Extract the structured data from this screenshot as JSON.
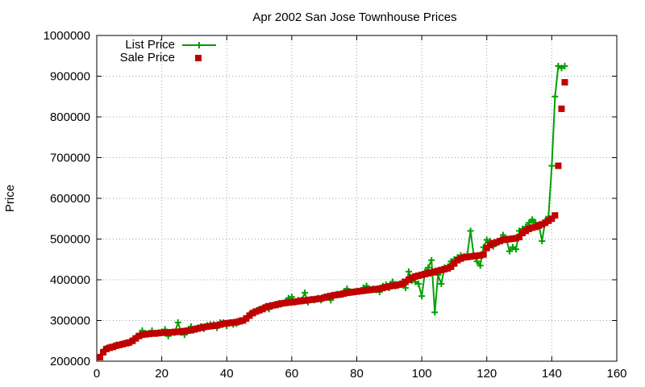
{
  "chart_data": {
    "type": "line",
    "title": "Apr 2002 San Jose Townhouse Prices",
    "xlabel": "",
    "ylabel": "Price",
    "xlim": [
      0,
      160
    ],
    "ylim": [
      200000,
      1000000
    ],
    "x_ticks": [
      0,
      20,
      40,
      60,
      80,
      100,
      120,
      140,
      160
    ],
    "y_ticks": [
      200000,
      300000,
      400000,
      500000,
      600000,
      700000,
      800000,
      900000,
      1000000
    ],
    "x_tick_labels": [
      "0",
      "20",
      "40",
      "60",
      "80",
      "100",
      "120",
      "140",
      "160"
    ],
    "y_tick_labels": [
      "200000",
      "300000",
      "400000",
      "500000",
      "600000",
      "700000",
      "800000",
      "900000",
      "1000000"
    ],
    "grid": true,
    "legend_position": "top-left",
    "series": [
      {
        "name": "List Price",
        "style": "line+cross",
        "color": "#00a000",
        "x": [
          1,
          2,
          3,
          4,
          5,
          6,
          7,
          8,
          9,
          10,
          11,
          12,
          13,
          14,
          15,
          16,
          17,
          18,
          19,
          20,
          21,
          22,
          23,
          24,
          25,
          26,
          27,
          28,
          29,
          30,
          31,
          32,
          33,
          34,
          35,
          36,
          37,
          38,
          39,
          40,
          41,
          42,
          43,
          44,
          45,
          46,
          47,
          48,
          49,
          50,
          51,
          52,
          53,
          54,
          55,
          56,
          57,
          58,
          59,
          60,
          61,
          62,
          63,
          64,
          65,
          66,
          67,
          68,
          69,
          70,
          71,
          72,
          73,
          74,
          75,
          76,
          77,
          78,
          79,
          80,
          81,
          82,
          83,
          84,
          85,
          86,
          87,
          88,
          89,
          90,
          91,
          92,
          93,
          94,
          95,
          96,
          97,
          98,
          99,
          100,
          101,
          102,
          103,
          104,
          105,
          106,
          107,
          108,
          109,
          110,
          111,
          112,
          113,
          114,
          115,
          116,
          117,
          118,
          119,
          120,
          121,
          122,
          123,
          124,
          125,
          126,
          127,
          128,
          129,
          130,
          131,
          132,
          133,
          134,
          135,
          136,
          137,
          138,
          139,
          140,
          141,
          142,
          143,
          144
        ],
        "values": [
          210000,
          225000,
          232000,
          235000,
          236000,
          240000,
          240000,
          242000,
          245000,
          245000,
          252000,
          258000,
          262000,
          275000,
          268000,
          268000,
          275000,
          268000,
          270000,
          272000,
          278000,
          262000,
          270000,
          270000,
          295000,
          270000,
          265000,
          275000,
          285000,
          278000,
          282000,
          285000,
          280000,
          288000,
          290000,
          290000,
          282000,
          295000,
          295000,
          287000,
          295000,
          290000,
          292000,
          300000,
          300000,
          305000,
          315000,
          320000,
          322000,
          328000,
          330000,
          335000,
          328000,
          335000,
          340000,
          342000,
          342000,
          345000,
          355000,
          358000,
          345000,
          350000,
          350000,
          368000,
          345000,
          352000,
          350000,
          355000,
          350000,
          358000,
          360000,
          350000,
          362000,
          365000,
          365000,
          370000,
          378000,
          368000,
          370000,
          372000,
          372000,
          380000,
          385000,
          375000,
          378000,
          375000,
          370000,
          385000,
          388000,
          380000,
          395000,
          385000,
          388000,
          395000,
          380000,
          420000,
          398000,
          395000,
          390000,
          360000,
          420000,
          430000,
          448000,
          320000,
          412000,
          390000,
          430000,
          432000,
          445000,
          450000,
          455000,
          460000,
          458000,
          462000,
          520000,
          460000,
          445000,
          435000,
          480000,
          498000,
          495000,
          482000,
          490000,
          495000,
          510000,
          500000,
          470000,
          480000,
          475000,
          520000,
          525000,
          530000,
          540000,
          548000,
          540000,
          535000,
          495000,
          545000,
          555000,
          680000,
          850000,
          925000,
          920000,
          925000
        ]
      },
      {
        "name": "Sale Price",
        "style": "squares",
        "color": "#c00000",
        "x": [
          1,
          2,
          3,
          4,
          5,
          6,
          7,
          8,
          9,
          10,
          11,
          12,
          13,
          14,
          15,
          16,
          17,
          18,
          19,
          20,
          21,
          22,
          23,
          24,
          25,
          26,
          27,
          28,
          29,
          30,
          31,
          32,
          33,
          34,
          35,
          36,
          37,
          38,
          39,
          40,
          41,
          42,
          43,
          44,
          45,
          46,
          47,
          48,
          49,
          50,
          51,
          52,
          53,
          54,
          55,
          56,
          57,
          58,
          59,
          60,
          61,
          62,
          63,
          64,
          65,
          66,
          67,
          68,
          69,
          70,
          71,
          72,
          73,
          74,
          75,
          76,
          77,
          78,
          79,
          80,
          81,
          82,
          83,
          84,
          85,
          86,
          87,
          88,
          89,
          90,
          91,
          92,
          93,
          94,
          95,
          96,
          97,
          98,
          99,
          100,
          101,
          102,
          103,
          104,
          105,
          106,
          107,
          108,
          109,
          110,
          111,
          112,
          113,
          114,
          115,
          116,
          117,
          118,
          119,
          120,
          121,
          122,
          123,
          124,
          125,
          126,
          127,
          128,
          129,
          130,
          131,
          132,
          133,
          134,
          135,
          136,
          137,
          138,
          139,
          140,
          141,
          142,
          143,
          144
        ],
        "values": [
          210000,
          222000,
          230000,
          233000,
          235000,
          238000,
          240000,
          242000,
          244000,
          246000,
          250000,
          256000,
          262000,
          265000,
          266000,
          267000,
          268000,
          268000,
          269000,
          270000,
          270000,
          270000,
          271000,
          272000,
          272000,
          273000,
          274000,
          275000,
          276000,
          278000,
          280000,
          282000,
          284000,
          285000,
          286000,
          287000,
          288000,
          290000,
          292000,
          293000,
          294000,
          295000,
          296000,
          298000,
          300000,
          305000,
          312000,
          318000,
          322000,
          325000,
          328000,
          332000,
          335000,
          337000,
          338000,
          340000,
          342000,
          343000,
          344000,
          345000,
          346000,
          347000,
          348000,
          349000,
          350000,
          351000,
          352000,
          353000,
          354000,
          356000,
          358000,
          360000,
          362000,
          363000,
          364000,
          366000,
          368000,
          369000,
          370000,
          371000,
          372000,
          373000,
          374000,
          375000,
          376000,
          377000,
          378000,
          380000,
          382000,
          384000,
          385000,
          386000,
          388000,
          390000,
          395000,
          400000,
          405000,
          408000,
          410000,
          412000,
          414000,
          416000,
          418000,
          420000,
          422000,
          424000,
          426000,
          428000,
          432000,
          440000,
          448000,
          452000,
          455000,
          456000,
          457000,
          458000,
          459000,
          460000,
          462000,
          478000,
          485000,
          490000,
          492000,
          495000,
          498000,
          499000,
          500000,
          501000,
          502000,
          505000,
          515000,
          520000,
          525000,
          528000,
          530000,
          533000,
          536000,
          540000,
          545000,
          550000,
          558000,
          680000,
          820000,
          885000
        ]
      }
    ]
  }
}
